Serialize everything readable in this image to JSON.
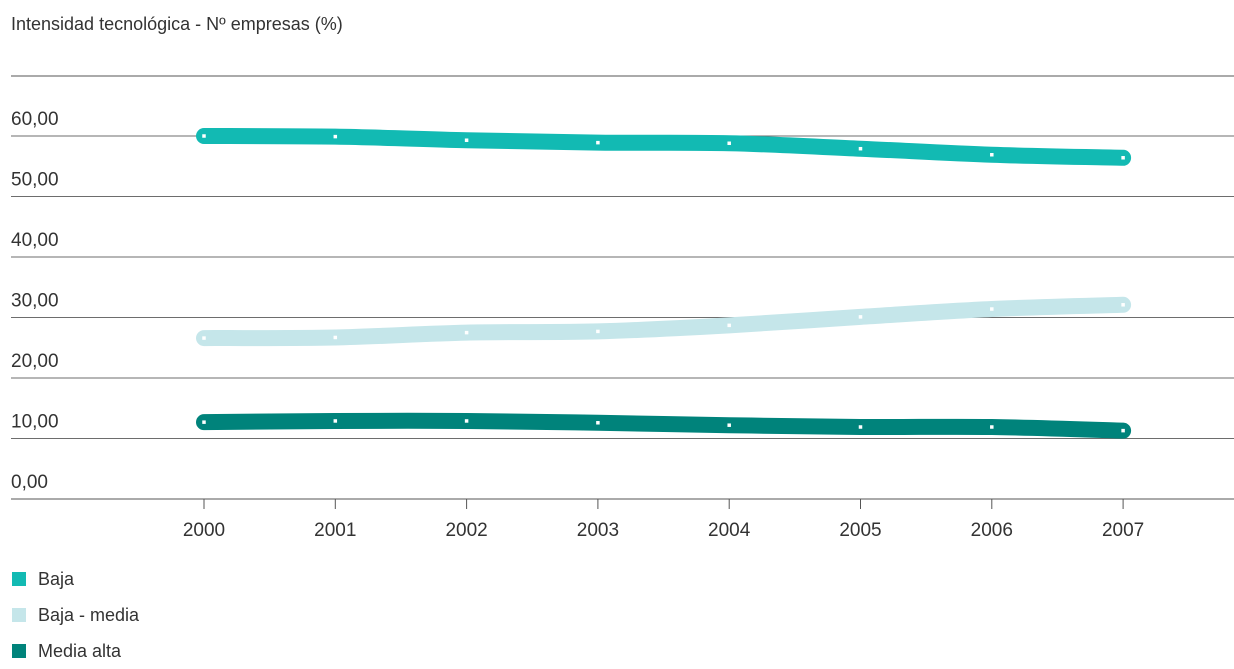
{
  "chart_data": {
    "type": "line",
    "title": "Intensidad tecnológica - Nº empresas (%)",
    "categories": [
      "2000",
      "2001",
      "2002",
      "2003",
      "2004",
      "2005",
      "2006",
      "2007"
    ],
    "y_ticks": [
      {
        "value": 0,
        "label": "0,00"
      },
      {
        "value": 10,
        "label": "10,00"
      },
      {
        "value": 20,
        "label": "20,00"
      },
      {
        "value": 30,
        "label": "30,00"
      },
      {
        "value": 40,
        "label": "40,00"
      },
      {
        "value": 50,
        "label": "50,00"
      },
      {
        "value": 60,
        "label": "60,00"
      }
    ],
    "ylim": [
      0,
      70
    ],
    "grid": true,
    "legend_position": "bottom-left",
    "series": [
      {
        "name": "Baja",
        "color": "#12bab3",
        "values": [
          60.0,
          59.9,
          59.3,
          58.9,
          58.8,
          57.9,
          56.9,
          56.4
        ]
      },
      {
        "name": "Baja - media",
        "color": "#c5e6ea",
        "values": [
          26.6,
          26.7,
          27.5,
          27.7,
          28.7,
          30.1,
          31.4,
          32.1
        ]
      },
      {
        "name": "Media alta",
        "color": "#00837b",
        "values": [
          12.7,
          12.9,
          12.9,
          12.6,
          12.2,
          11.9,
          11.9,
          11.3
        ]
      }
    ]
  }
}
